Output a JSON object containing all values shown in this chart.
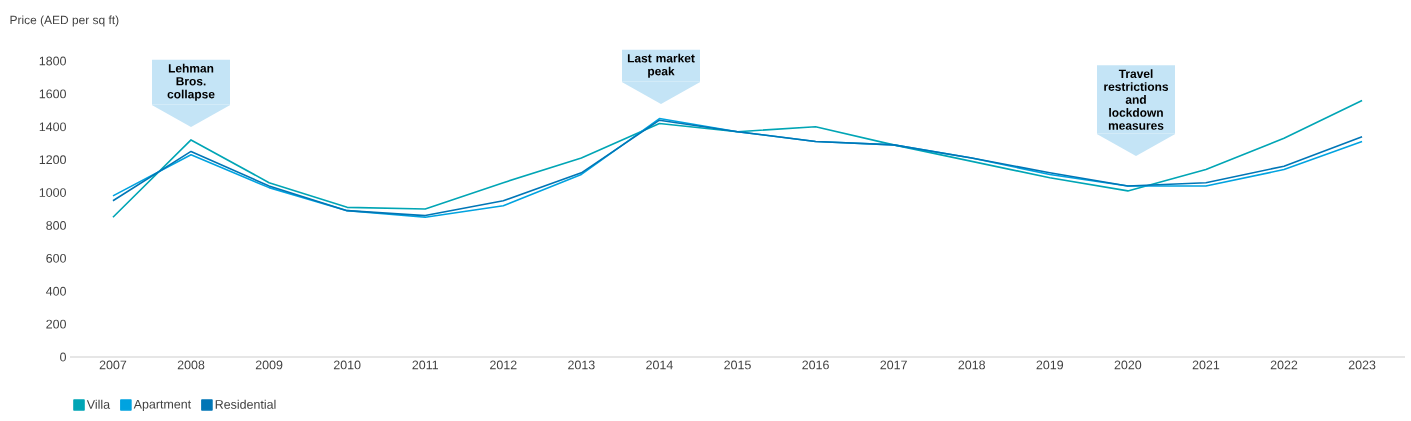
{
  "chart_data": {
    "type": "line",
    "ylabel": "Price (AED per sq ft)",
    "categories": [
      "2007",
      "2008",
      "2009",
      "2010",
      "2011",
      "2012",
      "2013",
      "2014",
      "2015",
      "2016",
      "2017",
      "2018",
      "2019",
      "2020",
      "2021",
      "2022",
      "2023"
    ],
    "series": [
      {
        "name": "Villa",
        "color": "#00a5b5",
        "values": [
          850,
          1320,
          1060,
          910,
          900,
          1060,
          1210,
          1420,
          1370,
          1400,
          1290,
          1190,
          1090,
          1010,
          1140,
          1330,
          1560
        ]
      },
      {
        "name": "Apartment",
        "color": "#00a3e0",
        "values": [
          980,
          1230,
          1030,
          890,
          850,
          920,
          1110,
          1450,
          1370,
          1310,
          1290,
          1210,
          1110,
          1040,
          1040,
          1140,
          1310
        ]
      },
      {
        "name": "Residential",
        "color": "#0076b6",
        "values": [
          950,
          1250,
          1040,
          890,
          860,
          950,
          1120,
          1440,
          1370,
          1310,
          1290,
          1210,
          1120,
          1040,
          1060,
          1160,
          1340
        ]
      }
    ],
    "ylim": [
      0,
      1800
    ],
    "yticks": [
      0,
      200,
      400,
      600,
      800,
      1000,
      1200,
      1400,
      1600,
      1800
    ],
    "grid": false,
    "legend": "bottom left",
    "marker": "none",
    "line_style": "solid",
    "annotations": [
      "Lehman Bros. collapse",
      "Last market peak",
      "Travel restrictions and lockdown measures"
    ]
  }
}
